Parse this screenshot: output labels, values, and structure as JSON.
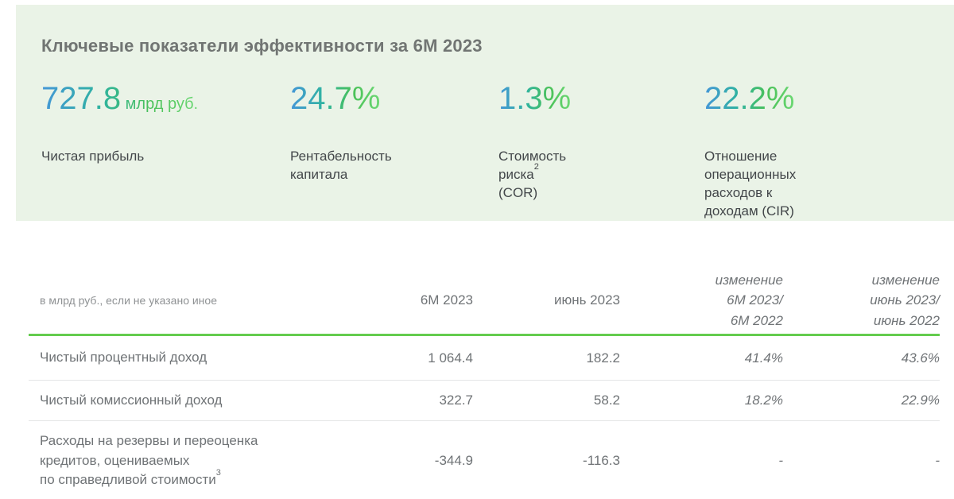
{
  "panel": {
    "title": "Ключевые показатели эффективности за 6М 2023",
    "kpis": [
      {
        "value": "727.8",
        "unit": " млрд руб.",
        "label_pre": "Чистая прибыль",
        "label_sup": "",
        "label_post": ""
      },
      {
        "value": "24.7%",
        "unit": "",
        "label_pre": "Рентабельность\nкапитала",
        "label_sup": "",
        "label_post": ""
      },
      {
        "value": "1.3%",
        "unit": "",
        "label_pre": "Стоимость риска",
        "label_sup": "2",
        "label_post": "\n(COR)"
      },
      {
        "value": "22.2%",
        "unit": "",
        "label_pre": "Отношение операционных\nрасходов к доходам (CIR)",
        "label_sup": "",
        "label_post": ""
      }
    ]
  },
  "table": {
    "unit_note": "в млрд руб., если не указано иное",
    "col_6m2023": "6М 2023",
    "col_june2023": "июнь 2023",
    "col_change_6m": "изменение\n6М 2023/\n6М 2022",
    "col_change_june": "изменение\nиюнь 2023/\nиюнь 2022",
    "rows": [
      {
        "label_pre": "Чистый процентный доход",
        "label_sup": "",
        "v1": "1 064.4",
        "v2": "182.2",
        "v3": "41.4%",
        "v4": "43.6%"
      },
      {
        "label_pre": "Чистый комиссионный доход",
        "label_sup": "",
        "v1": "322.7",
        "v2": "58.2",
        "v3": "18.2%",
        "v4": "22.9%"
      },
      {
        "label_pre": "Расходы на резервы и переоценка\nкредитов, оцениваемых\nпо справедливой стоимости",
        "label_sup": "3",
        "v1": "-344.9",
        "v2": "-116.3",
        "v3": "-",
        "v4": "-"
      }
    ]
  },
  "colors": {
    "panel_bg": "#eaf3e7",
    "accent_green": "#64cc4e",
    "value_gradient_start": "#4596d8",
    "value_gradient_end": "#4ac158"
  }
}
